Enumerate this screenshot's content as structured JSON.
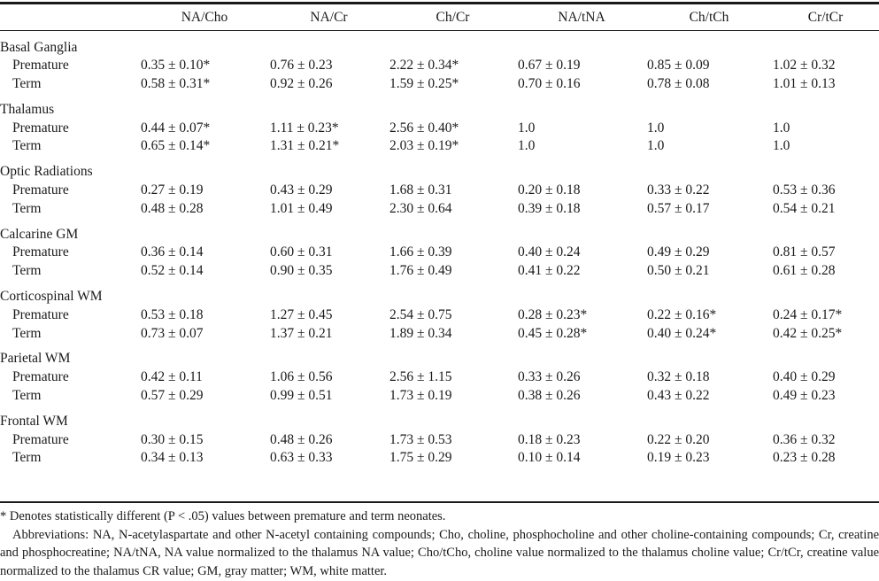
{
  "table": {
    "columns": [
      "",
      "NA/Cho",
      "NA/Cr",
      "Ch/Cr",
      "NA/tNA",
      "Ch/tCh",
      "Cr/tCr"
    ],
    "groups": [
      {
        "region": "Basal Ganglia",
        "rows": [
          {
            "label": "Premature",
            "values": [
              "0.35 ± 0.10*",
              "0.76 ± 0.23",
              "2.22 ± 0.34*",
              "0.67 ± 0.19",
              "0.85 ± 0.09",
              "1.02 ± 0.32"
            ]
          },
          {
            "label": "Term",
            "values": [
              "0.58 ± 0.31*",
              "0.92 ± 0.26",
              "1.59 ± 0.25*",
              "0.70 ± 0.16",
              "0.78 ± 0.08",
              "1.01 ± 0.13"
            ]
          }
        ]
      },
      {
        "region": "Thalamus",
        "rows": [
          {
            "label": "Premature",
            "values": [
              "0.44 ± 0.07*",
              "1.11 ± 0.23*",
              "2.56 ± 0.40*",
              "1.0",
              "1.0",
              "1.0"
            ]
          },
          {
            "label": "Term",
            "values": [
              "0.65 ± 0.14*",
              "1.31 ± 0.21*",
              "2.03 ± 0.19*",
              "1.0",
              "1.0",
              "1.0"
            ]
          }
        ]
      },
      {
        "region": "Optic Radiations",
        "rows": [
          {
            "label": "Premature",
            "values": [
              "0.27 ± 0.19",
              "0.43 ± 0.29",
              "1.68 ± 0.31",
              "0.20 ± 0.18",
              "0.33 ± 0.22",
              "0.53 ± 0.36"
            ]
          },
          {
            "label": "Term",
            "values": [
              "0.48 ± 0.28",
              "1.01 ± 0.49",
              "2.30 ± 0.64",
              "0.39 ± 0.18",
              "0.57 ± 0.17",
              "0.54 ± 0.21"
            ]
          }
        ]
      },
      {
        "region": "Calcarine GM",
        "rows": [
          {
            "label": "Premature",
            "values": [
              "0.36 ± 0.14",
              "0.60 ± 0.31",
              "1.66 ± 0.39",
              "0.40 ± 0.24",
              "0.49 ± 0.29",
              "0.81 ± 0.57"
            ]
          },
          {
            "label": "Term",
            "values": [
              "0.52 ± 0.14",
              "0.90 ± 0.35",
              "1.76 ± 0.49",
              "0.41 ± 0.22",
              "0.50 ± 0.21",
              "0.61 ± 0.28"
            ]
          }
        ]
      },
      {
        "region": "Corticospinal WM",
        "rows": [
          {
            "label": "Premature",
            "values": [
              "0.53 ± 0.18",
              "1.27 ± 0.45",
              "2.54 ± 0.75",
              "0.28 ± 0.23*",
              "0.22 ± 0.16*",
              "0.24 ± 0.17*"
            ]
          },
          {
            "label": "Term",
            "values": [
              "0.73 ± 0.07",
              "1.37 ± 0.21",
              "1.89 ± 0.34",
              "0.45 ± 0.28*",
              "0.40 ± 0.24*",
              "0.42 ± 0.25*"
            ]
          }
        ]
      },
      {
        "region": "Parietal WM",
        "rows": [
          {
            "label": "Premature",
            "values": [
              "0.42 ± 0.11",
              "1.06 ± 0.56",
              "2.56 ± 1.15",
              "0.33 ± 0.26",
              "0.32 ± 0.18",
              "0.40 ± 0.29"
            ]
          },
          {
            "label": "Term",
            "values": [
              "0.57 ± 0.29",
              "0.99 ± 0.51",
              "1.73 ± 0.19",
              "0.38 ± 0.26",
              "0.43 ± 0.22",
              "0.49 ± 0.23"
            ]
          }
        ]
      },
      {
        "region": "Frontal WM",
        "rows": [
          {
            "label": "Premature",
            "values": [
              "0.30 ± 0.15",
              "0.48 ± 0.26",
              "1.73 ± 0.53",
              "0.18 ± 0.23",
              "0.22 ± 0.20",
              "0.36 ± 0.32"
            ]
          },
          {
            "label": "Term",
            "values": [
              "0.34 ± 0.13",
              "0.63 ± 0.33",
              "1.75 ± 0.29",
              "0.10 ± 0.14",
              "0.19 ± 0.23",
              "0.23 ± 0.28"
            ]
          }
        ]
      }
    ]
  },
  "footnotes": {
    "significance": "* Denotes statistically different (P < .05) values between premature and term neonates.",
    "abbreviations": "Abbreviations: NA, N-acetylaspartate and other N-acetyl containing compounds; Cho, choline, phosphocholine and other choline-containing compounds; Cr, creatine and phosphocreatine; NA/tNA, NA value normalized to the thalamus NA value; Cho/tCho, choline value normalized to the thalamus choline value; Cr/tCr, creatine value normalized to the thalamus CR value; GM, gray matter; WM, white matter."
  }
}
